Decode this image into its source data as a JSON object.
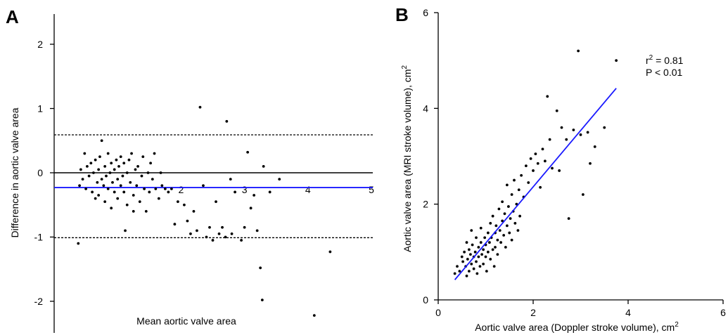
{
  "chart_data": [
    {
      "panel_label": "A",
      "type": "scatter",
      "title": "",
      "xlabel": "Mean aortic valve area",
      "ylabel": "Difference in aortic valve area",
      "xlim": [
        0,
        5
      ],
      "ylim": [
        -2.5,
        2.5
      ],
      "xticks": [
        2,
        3,
        4,
        5
      ],
      "yticks": [
        -2,
        -1,
        0,
        1,
        2
      ],
      "grid": false,
      "colors": {
        "points": "#000000",
        "mean_line": "#1a1aff",
        "zero_line": "#000000",
        "limits": "#000000"
      },
      "reference_lines": {
        "zero": 0,
        "mean_difference": -0.23,
        "upper_limit": 0.59,
        "lower_limit": -1.01
      },
      "points": [
        [
          0.38,
          -1.1
        ],
        [
          0.4,
          -0.2
        ],
        [
          0.42,
          0.05
        ],
        [
          0.45,
          -0.1
        ],
        [
          0.48,
          0.3
        ],
        [
          0.5,
          -0.25
        ],
        [
          0.52,
          0.1
        ],
        [
          0.55,
          -0.05
        ],
        [
          0.58,
          0.15
        ],
        [
          0.6,
          -0.3
        ],
        [
          0.62,
          0.0
        ],
        [
          0.65,
          -0.4
        ],
        [
          0.65,
          0.2
        ],
        [
          0.68,
          -0.15
        ],
        [
          0.7,
          0.05
        ],
        [
          0.7,
          -0.35
        ],
        [
          0.72,
          0.25
        ],
        [
          0.75,
          -0.1
        ],
        [
          0.75,
          0.5
        ],
        [
          0.78,
          -0.2
        ],
        [
          0.8,
          0.1
        ],
        [
          0.8,
          -0.45
        ],
        [
          0.82,
          -0.05
        ],
        [
          0.85,
          0.3
        ],
        [
          0.85,
          -0.25
        ],
        [
          0.88,
          0.0
        ],
        [
          0.9,
          -0.55
        ],
        [
          0.9,
          0.15
        ],
        [
          0.92,
          -0.15
        ],
        [
          0.95,
          0.05
        ],
        [
          0.95,
          -0.3
        ],
        [
          0.98,
          0.2
        ],
        [
          1.0,
          -0.1
        ],
        [
          1.0,
          -0.4
        ],
        [
          1.02,
          0.1
        ],
        [
          1.05,
          -0.2
        ],
        [
          1.05,
          0.25
        ],
        [
          1.08,
          -0.05
        ],
        [
          1.1,
          -0.3
        ],
        [
          1.1,
          0.15
        ],
        [
          1.12,
          -0.9
        ],
        [
          1.15,
          0.0
        ],
        [
          1.15,
          -0.5
        ],
        [
          1.18,
          0.2
        ],
        [
          1.2,
          -0.15
        ],
        [
          1.22,
          0.3
        ],
        [
          1.25,
          -0.35
        ],
        [
          1.25,
          -0.6
        ],
        [
          1.28,
          0.05
        ],
        [
          1.3,
          -0.2
        ],
        [
          1.32,
          0.1
        ],
        [
          1.35,
          -0.45
        ],
        [
          1.38,
          -0.05
        ],
        [
          1.4,
          0.25
        ],
        [
          1.42,
          -0.25
        ],
        [
          1.45,
          -0.6
        ],
        [
          1.48,
          0.0
        ],
        [
          1.5,
          -0.3
        ],
        [
          1.52,
          0.15
        ],
        [
          1.55,
          -0.1
        ],
        [
          1.58,
          0.3
        ],
        [
          1.6,
          -0.25
        ],
        [
          1.65,
          -0.4
        ],
        [
          1.68,
          0.0
        ],
        [
          1.7,
          -0.2
        ],
        [
          1.75,
          -0.25
        ],
        [
          1.8,
          -0.3
        ],
        [
          1.85,
          -0.25
        ],
        [
          1.9,
          -0.8
        ],
        [
          1.95,
          -0.45
        ],
        [
          2.05,
          -0.5
        ],
        [
          2.1,
          -0.75
        ],
        [
          2.15,
          -0.95
        ],
        [
          2.2,
          -0.6
        ],
        [
          2.25,
          -0.9
        ],
        [
          2.3,
          1.02
        ],
        [
          2.35,
          -0.2
        ],
        [
          2.4,
          -1.0
        ],
        [
          2.45,
          -0.85
        ],
        [
          2.5,
          -1.05
        ],
        [
          2.55,
          -0.45
        ],
        [
          2.6,
          -0.95
        ],
        [
          2.65,
          -0.85
        ],
        [
          2.7,
          -1.0
        ],
        [
          2.72,
          0.8
        ],
        [
          2.78,
          -0.1
        ],
        [
          2.8,
          -0.95
        ],
        [
          2.85,
          -0.3
        ],
        [
          2.95,
          -1.05
        ],
        [
          3.0,
          -0.85
        ],
        [
          3.05,
          0.32
        ],
        [
          3.1,
          -0.55
        ],
        [
          3.15,
          -0.35
        ],
        [
          3.2,
          -0.9
        ],
        [
          3.25,
          -1.48
        ],
        [
          3.28,
          -1.98
        ],
        [
          3.3,
          0.1
        ],
        [
          3.4,
          -0.3
        ],
        [
          3.55,
          -0.1
        ],
        [
          4.1,
          -2.22
        ],
        [
          4.35,
          -1.23
        ]
      ]
    },
    {
      "panel_label": "B",
      "type": "scatter",
      "title": "",
      "xlabel": "Aortic valve area (Doppler stroke volume), cm",
      "xlabel_sup": "2",
      "ylabel": "Aortic valve area (MRI stroke volume), cm",
      "ylabel_sup": "2",
      "xlim": [
        0,
        6
      ],
      "ylim": [
        0,
        6
      ],
      "xticks": [
        0,
        2,
        4,
        6
      ],
      "yticks": [
        0,
        2,
        4,
        6
      ],
      "grid": false,
      "colors": {
        "points": "#000000",
        "regression_line": "#1a1aff"
      },
      "regression_line": {
        "x": [
          0.35,
          3.75
        ],
        "y": [
          0.42,
          4.42
        ]
      },
      "annotation": {
        "r_label": "r",
        "r_sup": "2",
        "r_value": " = 0.81",
        "p_label": "P < 0.01"
      },
      "points": [
        [
          0.35,
          0.55
        ],
        [
          0.4,
          0.7
        ],
        [
          0.45,
          0.6
        ],
        [
          0.5,
          0.9
        ],
        [
          0.52,
          0.8
        ],
        [
          0.55,
          1.0
        ],
        [
          0.58,
          0.7
        ],
        [
          0.6,
          0.5
        ],
        [
          0.6,
          1.2
        ],
        [
          0.62,
          0.85
        ],
        [
          0.65,
          0.6
        ],
        [
          0.65,
          1.05
        ],
        [
          0.68,
          0.95
        ],
        [
          0.7,
          0.75
        ],
        [
          0.7,
          1.45
        ],
        [
          0.72,
          1.15
        ],
        [
          0.75,
          0.9
        ],
        [
          0.75,
          0.65
        ],
        [
          0.78,
          1.0
        ],
        [
          0.8,
          0.8
        ],
        [
          0.8,
          1.3
        ],
        [
          0.82,
          0.55
        ],
        [
          0.85,
          1.1
        ],
        [
          0.85,
          0.9
        ],
        [
          0.88,
          0.7
        ],
        [
          0.9,
          1.2
        ],
        [
          0.9,
          1.5
        ],
        [
          0.92,
          0.95
        ],
        [
          0.95,
          0.75
        ],
        [
          0.95,
          1.05
        ],
        [
          0.98,
          1.3
        ],
        [
          1.0,
          0.9
        ],
        [
          1.0,
          1.15
        ],
        [
          1.02,
          0.6
        ],
        [
          1.05,
          1.4
        ],
        [
          1.05,
          1.0
        ],
        [
          1.08,
          1.2
        ],
        [
          1.1,
          0.85
        ],
        [
          1.1,
          1.6
        ],
        [
          1.12,
          1.3
        ],
        [
          1.15,
          1.05
        ],
        [
          1.15,
          1.75
        ],
        [
          1.18,
          0.7
        ],
        [
          1.2,
          1.4
        ],
        [
          1.2,
          1.1
        ],
        [
          1.22,
          1.55
        ],
        [
          1.25,
          1.25
        ],
        [
          1.25,
          0.95
        ],
        [
          1.28,
          1.9
        ],
        [
          1.3,
          1.45
        ],
        [
          1.32,
          1.2
        ],
        [
          1.35,
          1.65
        ],
        [
          1.35,
          2.05
        ],
        [
          1.38,
          1.35
        ],
        [
          1.4,
          1.8
        ],
        [
          1.42,
          1.1
        ],
        [
          1.45,
          1.55
        ],
        [
          1.45,
          2.4
        ],
        [
          1.48,
          1.95
        ],
        [
          1.5,
          1.4
        ],
        [
          1.52,
          1.7
        ],
        [
          1.55,
          2.2
        ],
        [
          1.55,
          1.25
        ],
        [
          1.58,
          1.85
        ],
        [
          1.6,
          2.5
        ],
        [
          1.62,
          1.6
        ],
        [
          1.65,
          2.0
        ],
        [
          1.68,
          1.45
        ],
        [
          1.7,
          2.3
        ],
        [
          1.72,
          1.75
        ],
        [
          1.75,
          2.6
        ],
        [
          1.8,
          2.15
        ],
        [
          1.85,
          2.8
        ],
        [
          1.9,
          2.45
        ],
        [
          1.95,
          2.95
        ],
        [
          2.0,
          2.7
        ],
        [
          2.05,
          3.05
        ],
        [
          2.1,
          2.85
        ],
        [
          2.15,
          2.35
        ],
        [
          2.2,
          3.15
        ],
        [
          2.25,
          2.9
        ],
        [
          2.3,
          4.25
        ],
        [
          2.35,
          3.35
        ],
        [
          2.4,
          2.75
        ],
        [
          2.5,
          3.95
        ],
        [
          2.55,
          2.7
        ],
        [
          2.6,
          3.6
        ],
        [
          2.7,
          3.35
        ],
        [
          2.75,
          1.7
        ],
        [
          2.85,
          3.55
        ],
        [
          2.95,
          5.2
        ],
        [
          3.0,
          3.45
        ],
        [
          3.05,
          2.2
        ],
        [
          3.15,
          3.5
        ],
        [
          3.2,
          2.85
        ],
        [
          3.3,
          3.2
        ],
        [
          3.5,
          3.6
        ],
        [
          3.75,
          5.0
        ]
      ]
    }
  ]
}
